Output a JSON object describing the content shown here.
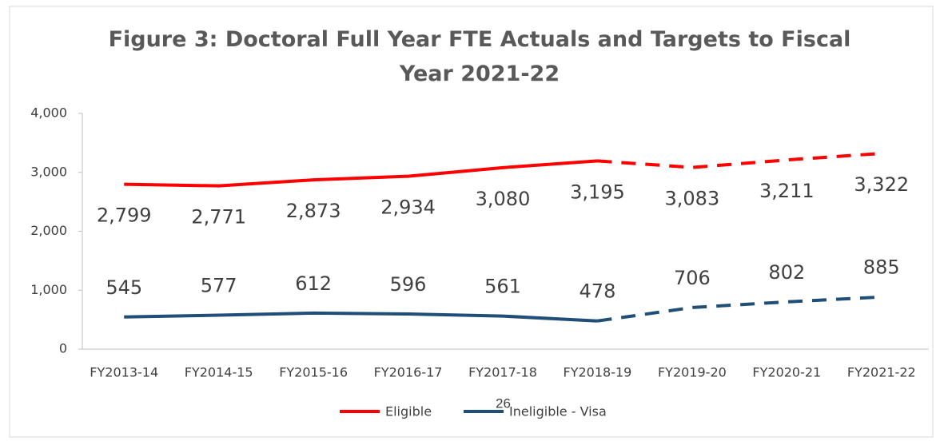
{
  "chart_data": {
    "type": "line",
    "title": "Figure 3: Doctoral Full Year FTE Actuals and Targets to Fiscal Year 2021-22",
    "categories": [
      "FY2013-14",
      "FY2014-15",
      "FY2015-16",
      "FY2016-17",
      "FY2017-18",
      "FY2018-19",
      "FY2019-20",
      "FY2020-21",
      "FY2021-22"
    ],
    "dashed_after": "FY2018-19",
    "series": [
      {
        "name": "Eligible",
        "color": "#ff0000",
        "values": [
          2799,
          2771,
          2873,
          2934,
          3080,
          3195,
          3083,
          3211,
          3322
        ],
        "value_labels": [
          "2,799",
          "2,771",
          "2,873",
          "2,934",
          "3,080",
          "3,195",
          "3,083",
          "3,211",
          "3,322"
        ]
      },
      {
        "name": "Ineligible - Visa",
        "color": "#1f4e79",
        "values": [
          545,
          577,
          612,
          596,
          561,
          478,
          706,
          802,
          885
        ],
        "value_labels": [
          "545",
          "577",
          "612",
          "596",
          "561",
          "478",
          "706",
          "802",
          "885"
        ]
      }
    ],
    "ylim": [
      0,
      4000
    ],
    "yticks": [
      0,
      {
        "value": 1000,
        "label": "1,000"
      },
      {
        "value": 2000,
        "label": "2,000"
      },
      {
        "value": 3000,
        "label": "3,000"
      },
      {
        "value": 4000,
        "label": "4,000"
      }
    ],
    "legend": "bottom",
    "annotation": "26"
  }
}
